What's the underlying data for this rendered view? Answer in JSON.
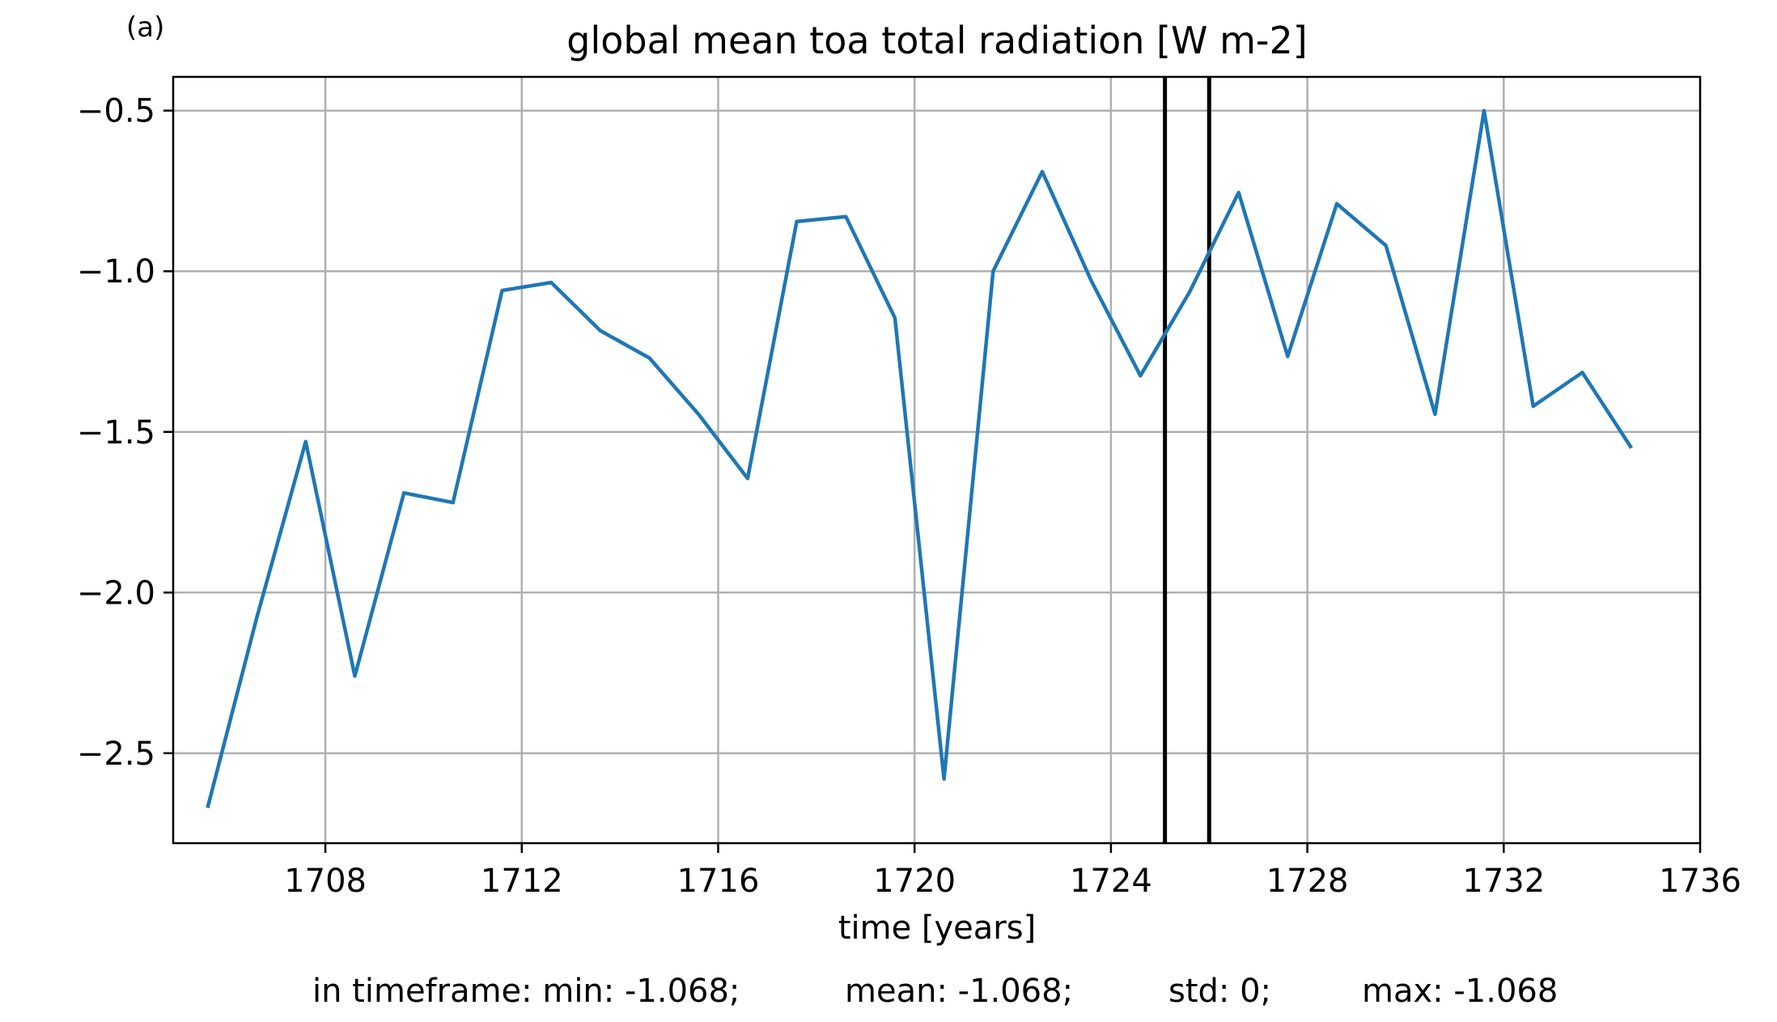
{
  "panel_label": "(a)",
  "chart_data": {
    "type": "line",
    "title": "global mean toa total radiation [W m-2]",
    "xlabel": "time [years]",
    "ylabel": "",
    "xlim": [
      1704.9,
      1736.0
    ],
    "ylim": [
      -2.78,
      -0.395
    ],
    "x_ticks": [
      1708,
      1712,
      1716,
      1720,
      1724,
      1728,
      1732,
      1736
    ],
    "y_ticks": [
      -0.5,
      -1.0,
      -1.5,
      -2.0,
      -2.5
    ],
    "y_tick_labels": [
      "−0.5",
      "−1.0",
      "−1.5",
      "−2.0",
      "−2.5"
    ],
    "grid": true,
    "vertical_lines": [
      1725.1,
      1726.0
    ],
    "series": [
      {
        "color": "#1f77b4",
        "x": [
          1705.6,
          1706.6,
          1707.6,
          1708.6,
          1709.6,
          1710.6,
          1711.6,
          1712.6,
          1713.6,
          1714.6,
          1715.6,
          1716.6,
          1717.6,
          1718.6,
          1719.6,
          1720.6,
          1721.6,
          1722.6,
          1723.6,
          1724.6,
          1725.6,
          1726.6,
          1727.6,
          1728.6,
          1729.6,
          1730.6,
          1731.6,
          1732.6,
          1733.6,
          1734.6
        ],
        "values": [
          -2.67,
          -2.08,
          -1.53,
          -2.26,
          -1.69,
          -1.72,
          -1.06,
          -1.035,
          -1.185,
          -1.27,
          -1.445,
          -1.645,
          -0.845,
          -0.83,
          -1.145,
          -2.58,
          -1.0,
          -0.69,
          -1.03,
          -1.325,
          -1.065,
          -0.755,
          -1.265,
          -0.79,
          -0.92,
          -1.445,
          -0.5,
          -1.42,
          -1.315,
          -1.55
        ]
      }
    ]
  },
  "stats": {
    "min": "in timeframe: min: -1.068;",
    "mean": "mean: -1.068;",
    "std": "std: 0;",
    "max": "max: -1.068"
  }
}
